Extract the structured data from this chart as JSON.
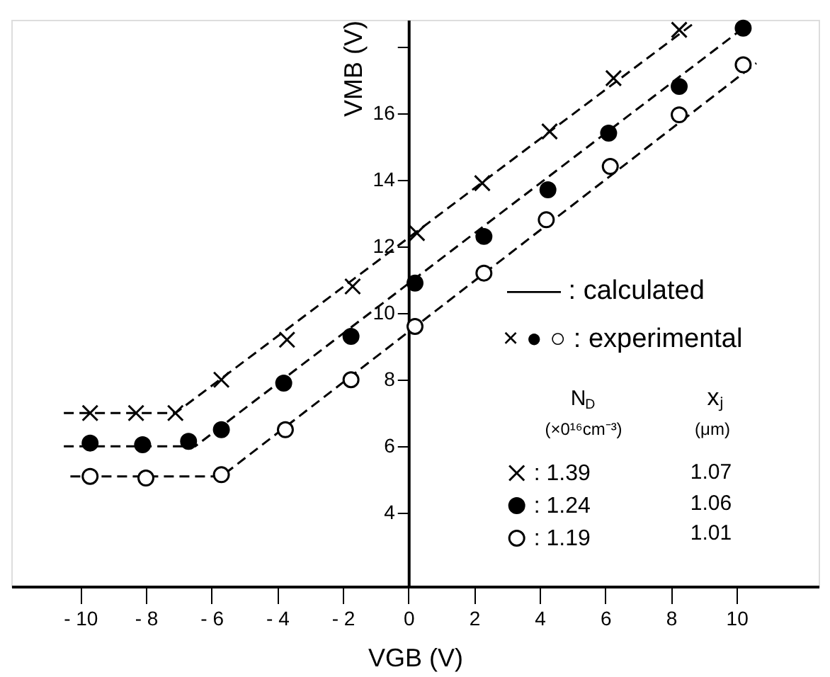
{
  "chart_data": {
    "type": "scatter",
    "xlabel": "VGB (V)",
    "ylabel": "VMB (V)",
    "xlim": [
      -12.1,
      12.5
    ],
    "xticks": [
      {
        "value": -10,
        "label": "- 10"
      },
      {
        "value": -8,
        "label": "- 8"
      },
      {
        "value": -6,
        "label": "- 6"
      },
      {
        "value": -4,
        "label": "- 4"
      },
      {
        "value": -2,
        "label": "- 2"
      },
      0,
      2,
      4,
      6,
      8,
      10
    ],
    "ylim": [
      1.8,
      18.8
    ],
    "yticks": [
      4,
      6,
      8,
      10,
      12,
      14,
      16,
      {
        "value": 18,
        "label": null
      }
    ],
    "grid": false,
    "legend": "bottom right",
    "series": [
      {
        "name": ": 1.39",
        "marker": "cross",
        "color": "#000000",
        "x": [
          -9.7,
          -8.3,
          -7.1,
          -5.7,
          -3.7,
          -1.7,
          0.26,
          2.25,
          4.3,
          6.25,
          8.25
        ],
        "values": [
          7.0,
          7.0,
          7.0,
          8.0,
          9.2,
          10.8,
          12.4,
          13.9,
          15.45,
          17.05,
          18.5
        ]
      },
      {
        "name": ": 1.24",
        "marker": "circle",
        "color": "#000000",
        "x": [
          -9.7,
          -8.1,
          -6.7,
          -5.7,
          -3.8,
          -1.75,
          0.2,
          2.3,
          4.25,
          6.1,
          8.25,
          10.2
        ],
        "values": [
          6.1,
          6.05,
          6.15,
          6.5,
          7.9,
          9.3,
          10.9,
          12.3,
          13.7,
          15.4,
          16.8,
          18.55
        ]
      },
      {
        "name": ": 1.19",
        "marker": "circle",
        "color": "#ffffff",
        "x": [
          -9.7,
          -8.0,
          -5.7,
          -3.75,
          -1.75,
          0.2,
          2.3,
          4.2,
          6.15,
          8.25,
          10.2
        ],
        "values": [
          5.1,
          5.05,
          5.15,
          6.5,
          8.0,
          9.6,
          11.2,
          12.8,
          14.4,
          15.95,
          17.45
        ]
      },
      {
        "type": "line",
        "line_style": "dashed",
        "color": "#000000",
        "x": [
          -10.5,
          -7.1,
          8.7
        ],
        "values": [
          7.0,
          7.0,
          18.7
        ]
      },
      {
        "type": "line",
        "line_style": "dashed",
        "color": "#000000",
        "x": [
          -10.5,
          -6.5,
          10.4
        ],
        "values": [
          6.0,
          6.0,
          18.7
        ]
      },
      {
        "type": "line",
        "line_style": "dashed",
        "color": "#000000",
        "x": [
          -10.3,
          -5.7,
          10.6
        ],
        "values": [
          5.1,
          5.1,
          17.5
        ]
      }
    ],
    "annotations": [
      "—— : calculated",
      "× ● ○ : experimental",
      "N$_{D}$",
      "(×0¹⁶cm⁻³)",
      "xⱼ",
      "(μm)",
      "1.07",
      "1.06",
      "1.01"
    ]
  }
}
